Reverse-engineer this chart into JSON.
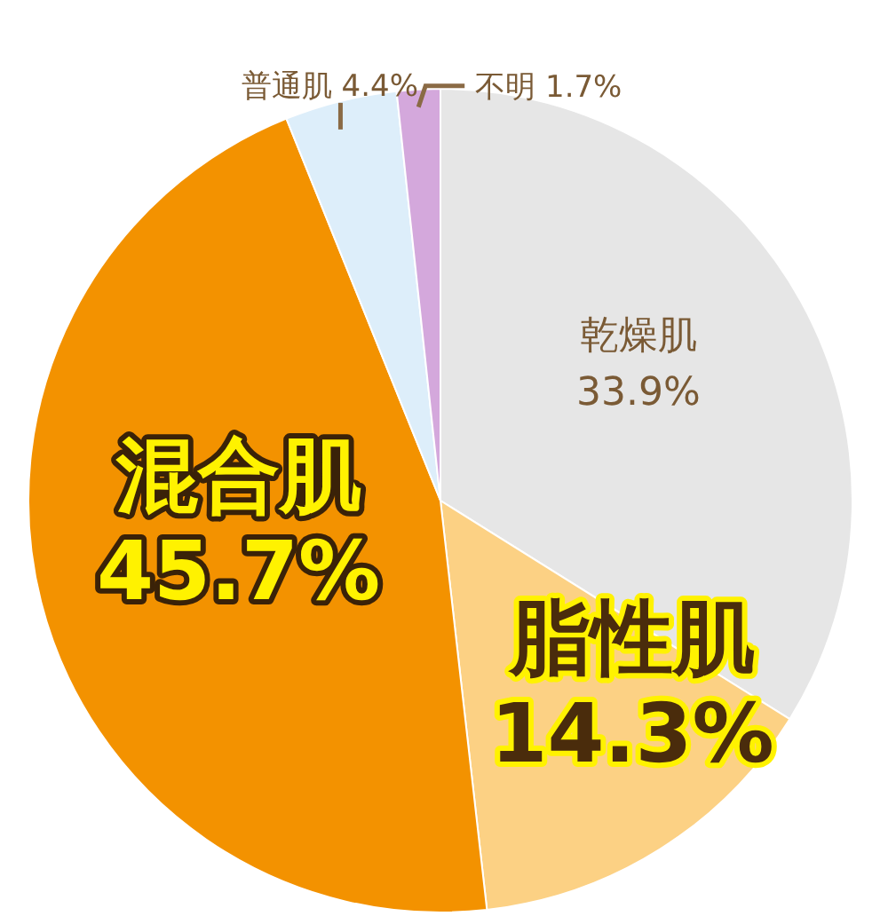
{
  "chart_data": {
    "type": "pie",
    "categories": [
      "乾燥肌",
      "脂性肌",
      "混合肌",
      "普通肌",
      "不明"
    ],
    "values": [
      33.9,
      14.3,
      45.7,
      4.4,
      1.7
    ],
    "colors": [
      "#e6e6e6",
      "#fcd184",
      "#f39200",
      "#ddeefa",
      "#d4a8dc"
    ],
    "value_labels": [
      "33.9%",
      "14.3%",
      "45.7%",
      "4.4%",
      "1.7%"
    ]
  }
}
